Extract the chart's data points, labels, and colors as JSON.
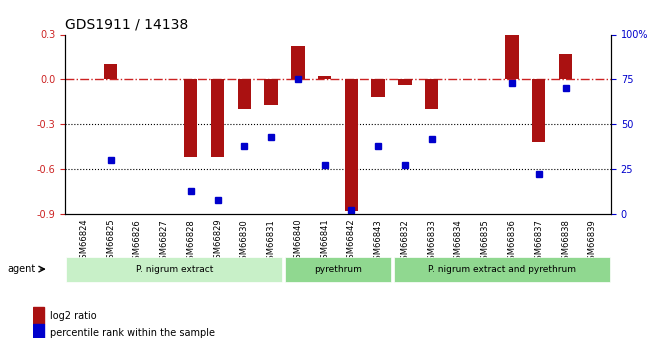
{
  "title": "GDS1911 / 14138",
  "samples": [
    "GSM66824",
    "GSM66825",
    "GSM66826",
    "GSM66827",
    "GSM66828",
    "GSM66829",
    "GSM66830",
    "GSM66831",
    "GSM66840",
    "GSM66841",
    "GSM66842",
    "GSM66843",
    "GSM66832",
    "GSM66833",
    "GSM66834",
    "GSM66835",
    "GSM66836",
    "GSM66837",
    "GSM66838",
    "GSM66839"
  ],
  "log2_ratio": [
    0.0,
    0.1,
    0.0,
    0.0,
    -0.52,
    -0.52,
    -0.2,
    -0.17,
    0.22,
    0.02,
    -0.88,
    -0.12,
    -0.04,
    -0.2,
    0.0,
    0.0,
    0.3,
    -0.42,
    0.17,
    0.0
  ],
  "percentile": [
    null,
    30,
    null,
    null,
    13,
    8,
    38,
    43,
    75,
    27,
    2,
    38,
    27,
    42,
    null,
    null,
    73,
    22,
    70,
    null
  ],
  "groups": [
    {
      "label": "P. nigrum extract",
      "start": 0,
      "end": 8,
      "color": "#c8f0c8"
    },
    {
      "label": "pyrethrum",
      "start": 8,
      "end": 12,
      "color": "#90d890"
    },
    {
      "label": "P. nigrum extract and pyrethrum",
      "start": 12,
      "end": 20,
      "color": "#90d890"
    }
  ],
  "bar_color": "#aa1111",
  "dot_color": "#0000cc",
  "dashed_color": "#cc2222",
  "ylim_left": [
    -0.9,
    0.3
  ],
  "ylim_right": [
    0,
    100
  ],
  "yticks_left": [
    -0.9,
    -0.6,
    -0.3,
    0.0,
    0.3
  ],
  "yticks_right": [
    0,
    25,
    50,
    75,
    100
  ],
  "hlines": [
    -0.3,
    -0.6
  ],
  "legend_bar_label": "log2 ratio",
  "legend_dot_label": "percentile rank within the sample",
  "agent_label": "agent"
}
